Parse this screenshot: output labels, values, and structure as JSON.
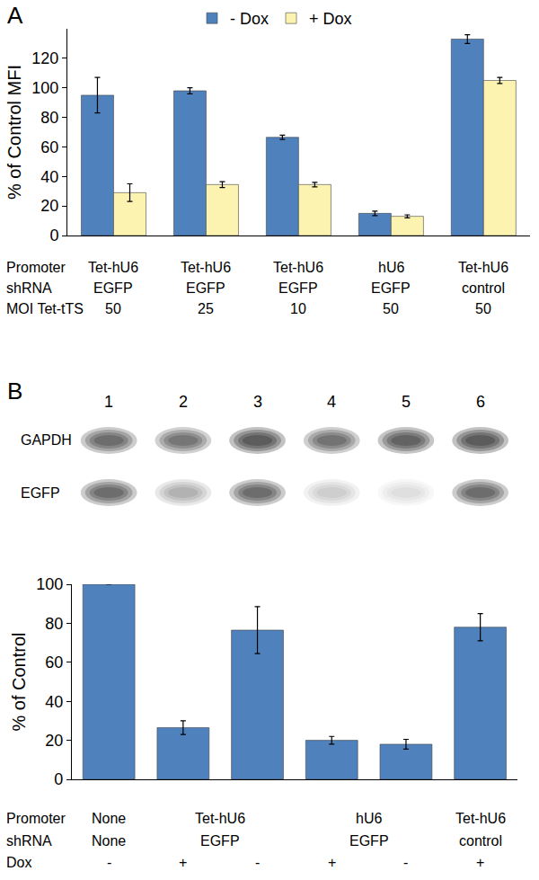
{
  "chart_data": [
    {
      "type": "bar",
      "title": "A",
      "y_label": "% of Control MFI",
      "category_rows": [
        "Promoter",
        "shRNA",
        "MOI Tet-tTS"
      ],
      "categories": [
        [
          "Tet-hU6",
          "EGFP",
          50
        ],
        [
          "Tet-hU6",
          "EGFP",
          25
        ],
        [
          "Tet-hU6",
          "EGFP",
          10
        ],
        [
          "hU6",
          "EGFP",
          50
        ],
        [
          "Tet-hU6",
          "control",
          50
        ]
      ],
      "series": [
        {
          "name": "- Dox",
          "color": "#4f81bd",
          "values": [
            95,
            98,
            66.5,
            15,
            133
          ],
          "errors": [
            12,
            2,
            1.5,
            1.5,
            3
          ]
        },
        {
          "name": "+ Dox",
          "color": "#fcf3b0",
          "values": [
            29,
            34.5,
            34.5,
            13,
            105
          ],
          "errors": [
            6,
            2,
            1.5,
            1,
            2
          ]
        }
      ],
      "ylim": [
        0,
        140
      ],
      "yticks": [
        0,
        20,
        40,
        60,
        80,
        100,
        120
      ],
      "grid": false,
      "legend": "top",
      "tick_labels": "y"
    },
    {
      "type": "bar",
      "title": "B",
      "y_label": "% of Control",
      "blot": {
        "lanes": [
          1,
          2,
          3,
          4,
          5,
          6
        ],
        "rows": [
          "GAPDH",
          "EGFP"
        ]
      },
      "category_rows": [
        "Promoter",
        "shRNA",
        "Dox"
      ],
      "categories": [
        [
          "None",
          "None",
          "-"
        ],
        [
          "Tet-hU6",
          "EGFP",
          "+"
        ],
        [
          null,
          null,
          "-"
        ],
        [
          "hU6",
          "EGFP",
          "+"
        ],
        [
          null,
          null,
          "-"
        ],
        [
          "Tet-hU6",
          "control",
          "+"
        ]
      ],
      "values": [
        100,
        26.5,
        76.5,
        20,
        18,
        78
      ],
      "errors": [
        null,
        3.5,
        12,
        2,
        2.5,
        7
      ],
      "color": "#4f81bd",
      "ylim": [
        0,
        100
      ],
      "yticks": [
        0,
        20,
        40,
        60,
        80,
        100
      ],
      "grid": false,
      "tick_labels": "y"
    }
  ]
}
